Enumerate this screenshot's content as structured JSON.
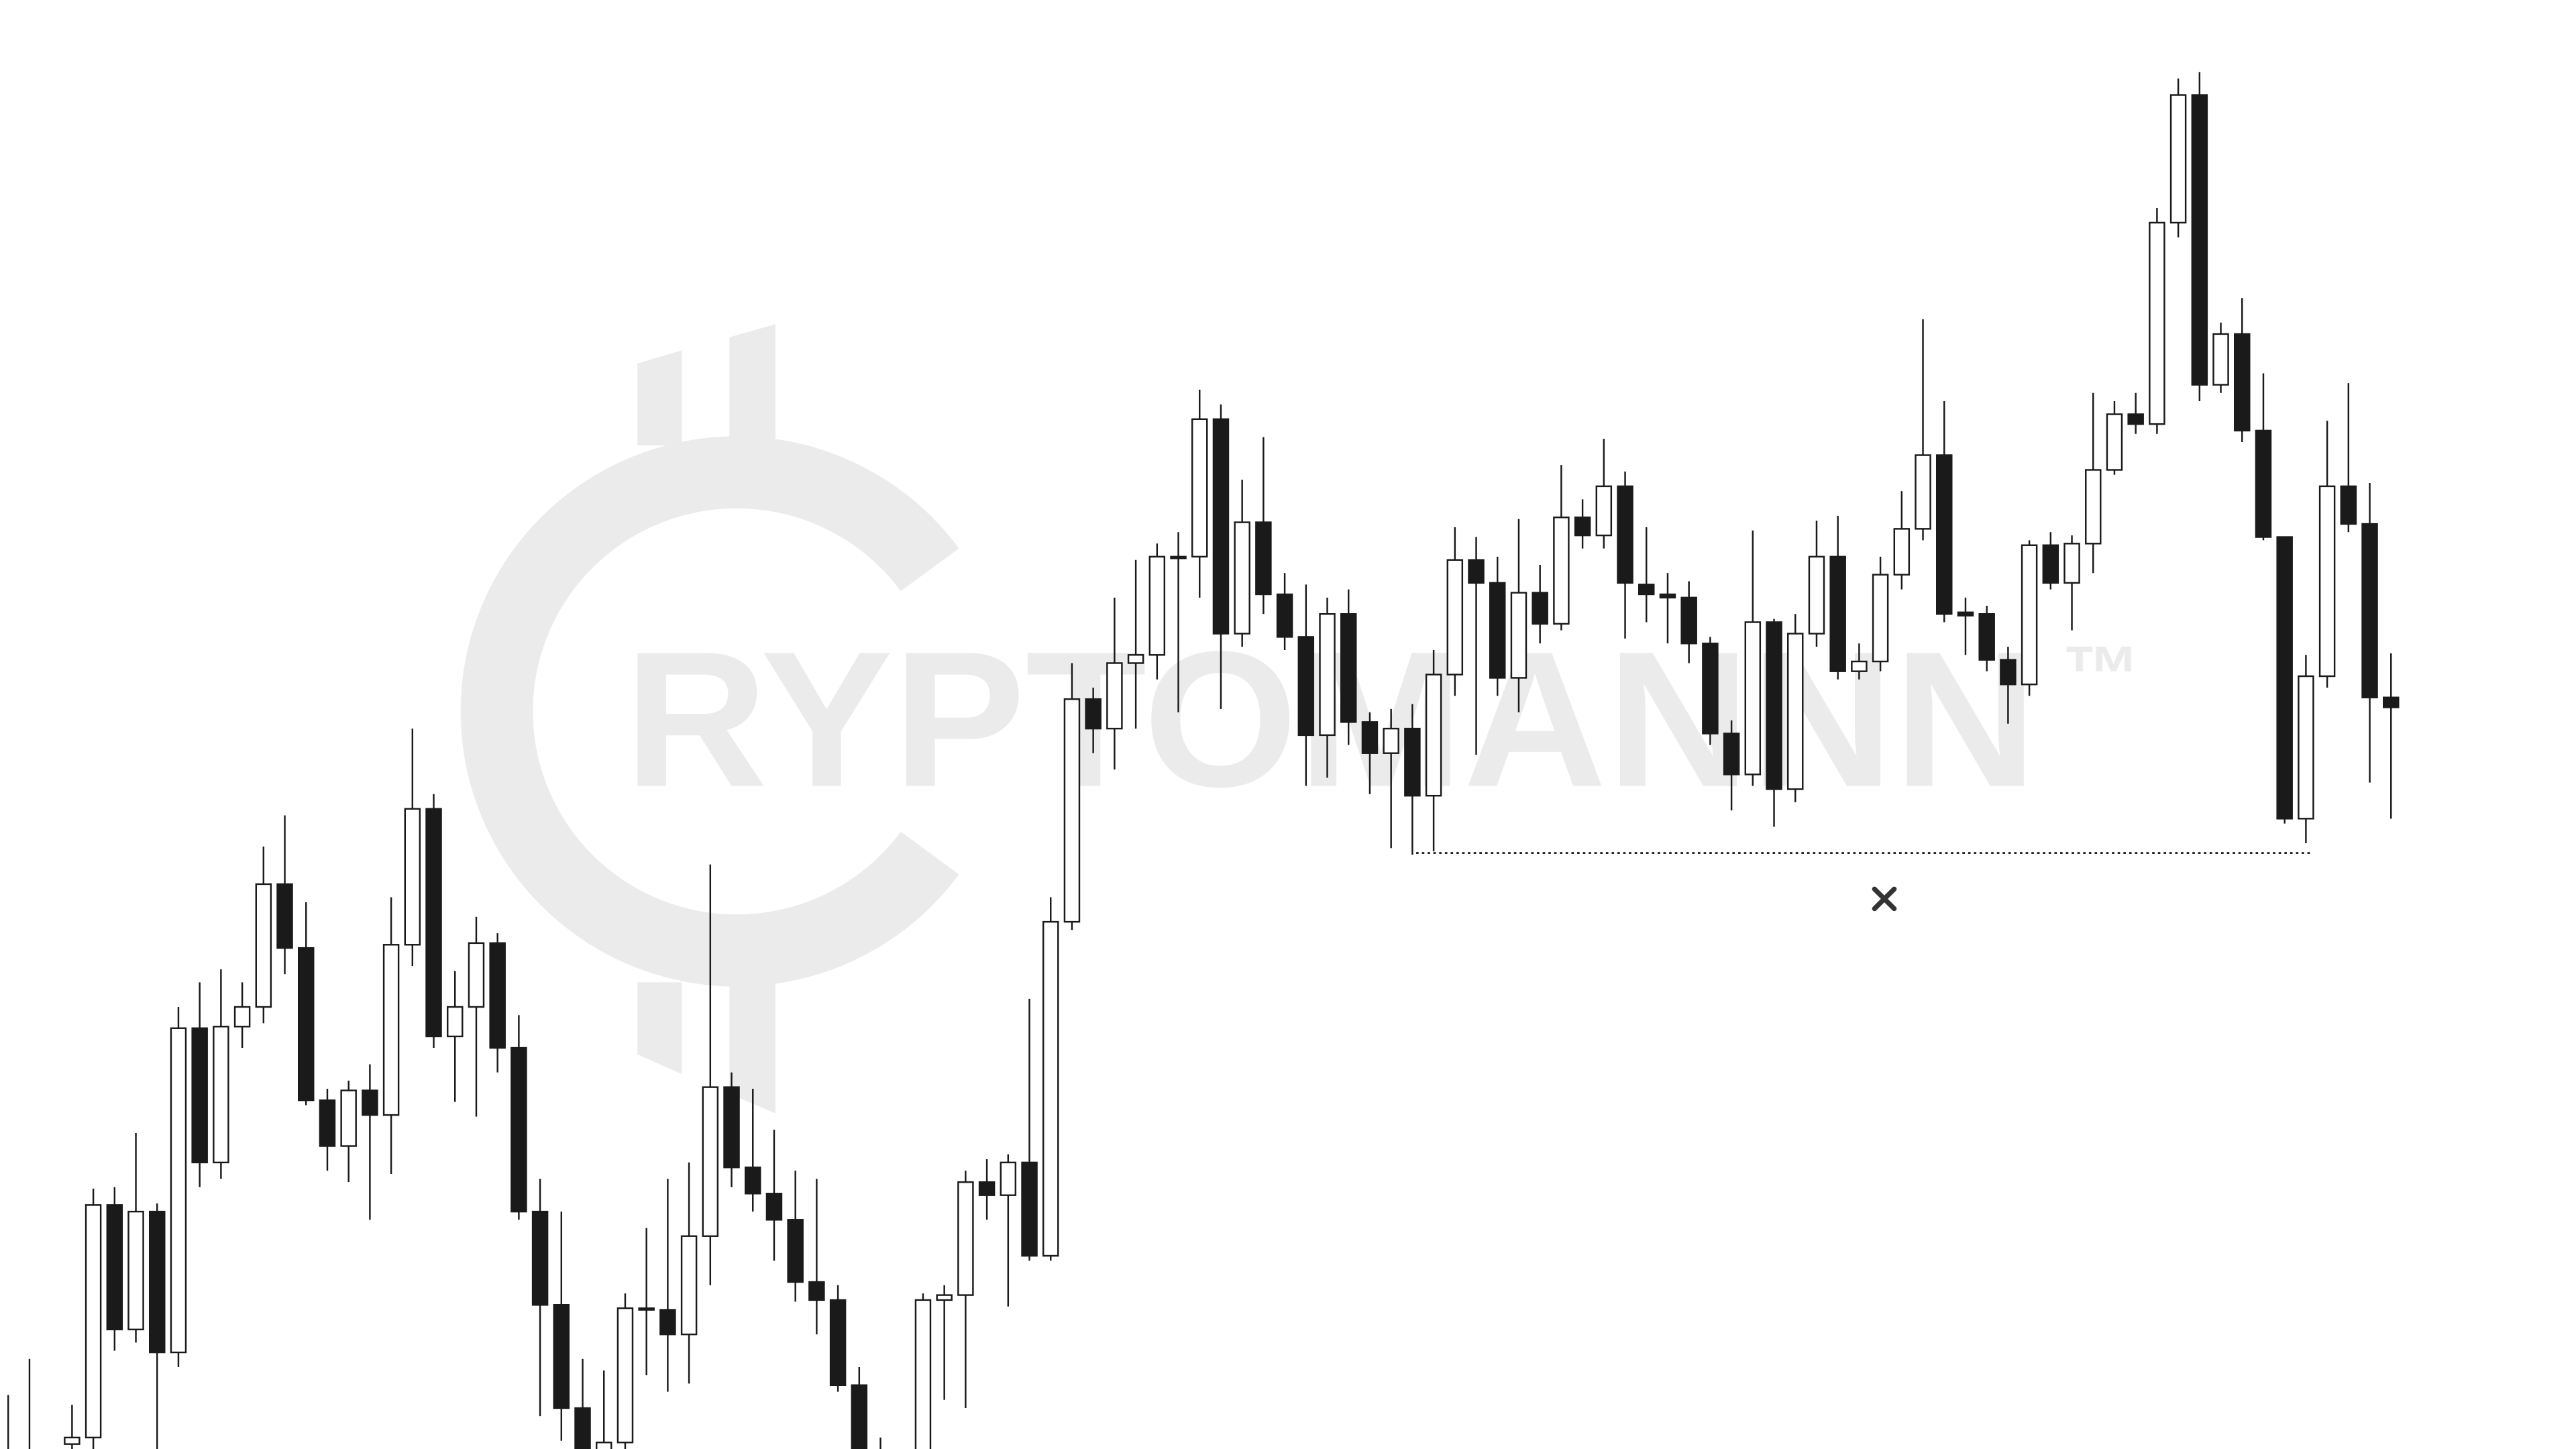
{
  "chart_data": {
    "type": "candlestick",
    "open": [
      -10,
      -5,
      null,
      3,
      7,
      149,
      73,
      145,
      59,
      257,
      175,
      258,
      270,
      345,
      306,
      213,
      185,
      219,
      204,
      308,
      391,
      252,
      270,
      309,
      245,
      145,
      88,
      25,
      -30,
      4,
      86,
      85,
      70,
      130,
      221,
      172,
      156,
      140,
      102,
      91,
      39,
      -12,
      null,
      -15,
      91,
      94,
      163,
      155,
      175,
      118,
      322,
      458,
      440,
      480,
      485,
      545,
      545,
      629,
      498,
      566,
      522,
      496,
      436,
      510,
      444,
      425,
      440,
      399,
      473,
      543,
      529,
      471,
      523,
      504,
      569,
      558,
      588,
      528,
      522,
      520,
      492,
      437,
      412,
      505,
      403,
      498,
      545,
      475,
      481,
      534,
      562,
      607,
      511,
      510,
      482,
      467,
      552,
      529,
      553,
      598,
      632,
      626,
      749,
      827,
      650,
      681,
      622,
      557,
      385,
      472,
      588,
      565,
      459
    ],
    "high": [
      33,
      55,
      null,
      27,
      159,
      160,
      193,
      150,
      270,
      285,
      293,
      285,
      368,
      387,
      334,
      220,
      225,
      235,
      337,
      440,
      400,
      292,
      325,
      315,
      265,
      165,
      145,
      55,
      48,
      95,
      135,
      165,
      175,
      357,
      230,
      220,
      195,
      170,
      165,
      100,
      50,
      7,
      null,
      95,
      100,
      170,
      177,
      180,
      275,
      337,
      480,
      465,
      520,
      543,
      553,
      560,
      647,
      638,
      592,
      618,
      535,
      528,
      520,
      525,
      450,
      452,
      455,
      488,
      563,
      557,
      545,
      568,
      540,
      601,
      580,
      617,
      597,
      563,
      535,
      530,
      496,
      445,
      561,
      507,
      510,
      567,
      570,
      492,
      545,
      585,
      690,
      640,
      520,
      515,
      490,
      555,
      560,
      558,
      645,
      640,
      645,
      758,
      837,
      841,
      688,
      703,
      657,
      557,
      485,
      628,
      651,
      590,
      486
    ],
    "low": [
      -25,
      -30,
      null,
      -10,
      -5,
      60,
      65,
      0,
      50,
      160,
      165,
      245,
      260,
      290,
      210,
      170,
      163,
      140,
      168,
      295,
      245,
      212,
      203,
      230,
      140,
      20,
      5,
      -25,
      -40,
      -10,
      45,
      35,
      40,
      100,
      160,
      145,
      115,
      90,
      70,
      35,
      -20,
      -20,
      null,
      -20,
      30,
      25,
      140,
      87,
      115,
      115,
      317,
      425,
      415,
      440,
      470,
      450,
      520,
      452,
      490,
      510,
      488,
      405,
      410,
      430,
      400,
      367,
      363,
      365,
      460,
      424,
      460,
      450,
      492,
      500,
      550,
      550,
      495,
      505,
      492,
      480,
      430,
      390,
      405,
      380,
      395,
      490,
      470,
      470,
      475,
      525,
      555,
      505,
      485,
      475,
      443,
      460,
      525,
      500,
      535,
      595,
      620,
      620,
      740,
      640,
      645,
      615,
      555,
      382,
      370,
      465,
      560,
      407,
      385
    ],
    "close": [
      -15,
      -12,
      null,
      7,
      149,
      73,
      145,
      59,
      257,
      175,
      258,
      270,
      345,
      306,
      213,
      185,
      219,
      204,
      308,
      391,
      252,
      270,
      309,
      245,
      145,
      88,
      25,
      -10,
      4,
      86,
      85,
      70,
      130,
      221,
      172,
      156,
      140,
      102,
      91,
      39,
      -5,
      -4,
      null,
      91,
      94,
      163,
      155,
      175,
      118,
      322,
      458,
      440,
      480,
      485,
      545,
      545,
      629,
      498,
      566,
      522,
      496,
      436,
      510,
      444,
      425,
      440,
      399,
      473,
      543,
      529,
      471,
      523,
      504,
      569,
      558,
      588,
      529,
      522,
      520,
      492,
      437,
      412,
      505,
      403,
      498,
      545,
      475,
      481,
      534,
      562,
      607,
      510,
      509,
      482,
      467,
      552,
      529,
      553,
      598,
      632,
      626,
      749,
      827,
      650,
      681,
      622,
      557,
      385,
      472,
      588,
      565,
      459,
      453
    ],
    "up_color": "#ffffff",
    "down_color": "#1a1a1a",
    "edge_color": "#1a1a1a",
    "ylim": [
      0,
      885
    ]
  },
  "watermark": {
    "text": "RYPTOMANNN",
    "trademark": "™"
  }
}
